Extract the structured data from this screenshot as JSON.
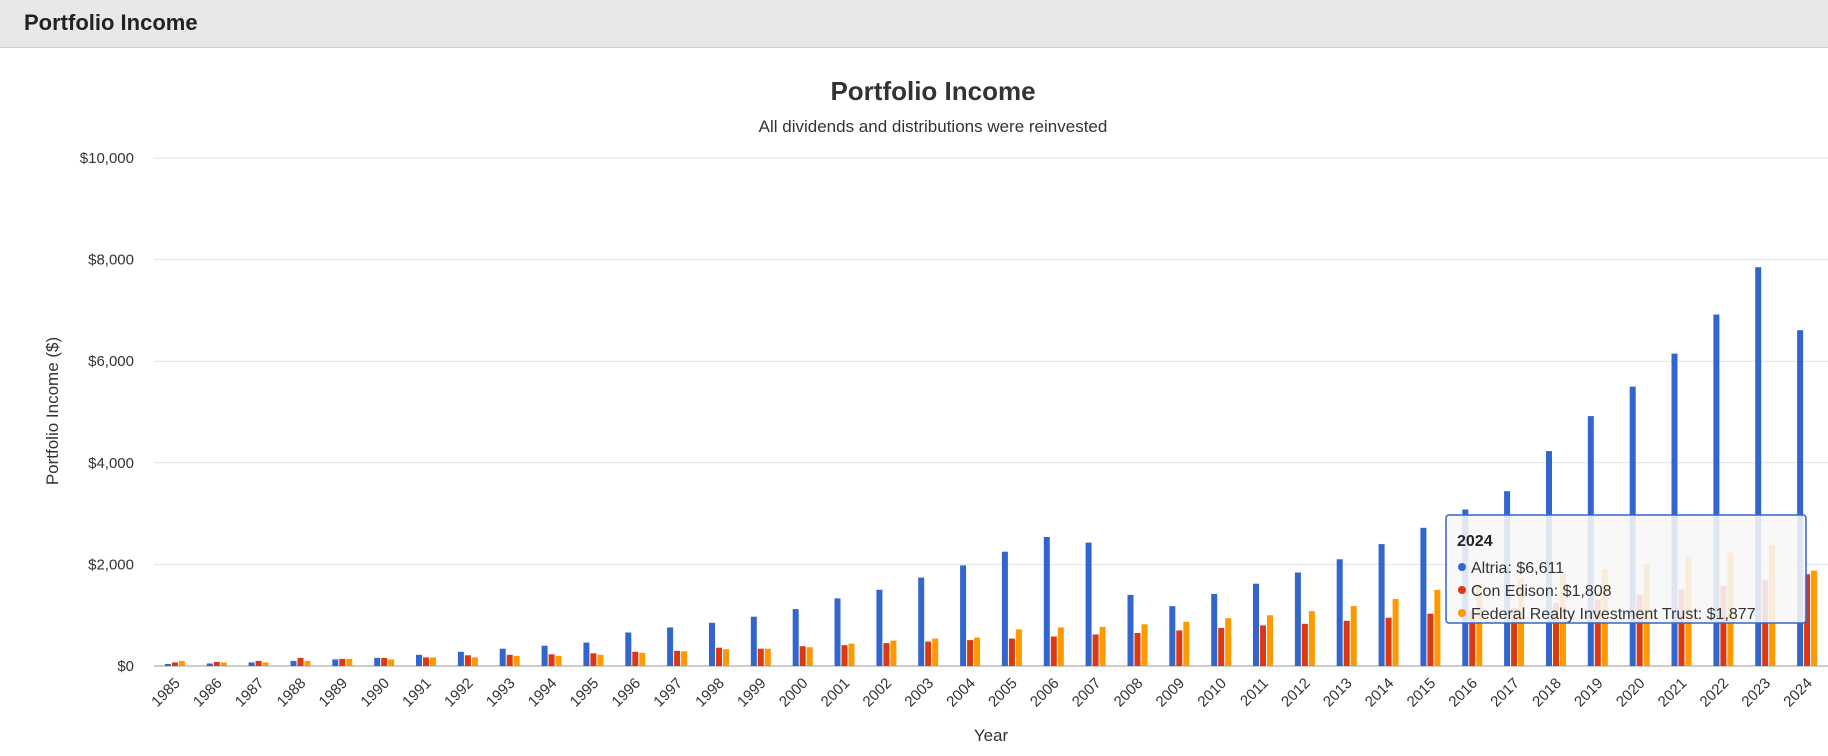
{
  "header": {
    "title": "Portfolio Income"
  },
  "chart_data": {
    "type": "bar",
    "title": "Portfolio Income",
    "subtitle": "All dividends and distributions were reinvested",
    "xlabel": "Year",
    "ylabel": "Portfolio Income ($)",
    "ylim": [
      0,
      10000
    ],
    "yticks": [
      0,
      2000,
      4000,
      6000,
      8000,
      10000
    ],
    "ytick_labels": [
      "$0",
      "$2,000",
      "$4,000",
      "$6,000",
      "$8,000",
      "$10,000"
    ],
    "grid": true,
    "legend": "none",
    "categories": [
      "1985",
      "1986",
      "1987",
      "1988",
      "1989",
      "1990",
      "1991",
      "1992",
      "1993",
      "1994",
      "1995",
      "1996",
      "1997",
      "1998",
      "1999",
      "2000",
      "2001",
      "2002",
      "2003",
      "2004",
      "2005",
      "2006",
      "2007",
      "2008",
      "2009",
      "2010",
      "2011",
      "2012",
      "2013",
      "2014",
      "2015",
      "2016",
      "2017",
      "2018",
      "2019",
      "2020",
      "2021",
      "2022",
      "2023",
      "2024"
    ],
    "series": [
      {
        "name": "Altria",
        "color": "#3366cc",
        "values": [
          40,
          50,
          70,
          100,
          130,
          160,
          220,
          280,
          340,
          400,
          460,
          660,
          760,
          850,
          970,
          1120,
          1330,
          1500,
          1740,
          1980,
          2250,
          2540,
          2430,
          1400,
          1180,
          1420,
          1620,
          1840,
          2100,
          2400,
          2720,
          3080,
          3440,
          4230,
          4920,
          5500,
          6150,
          6920,
          7850,
          6611
        ]
      },
      {
        "name": "Con Edison",
        "color": "#dc3912",
        "values": [
          70,
          80,
          100,
          160,
          140,
          160,
          170,
          210,
          220,
          230,
          250,
          280,
          300,
          360,
          340,
          390,
          410,
          450,
          480,
          510,
          540,
          580,
          620,
          650,
          700,
          750,
          800,
          830,
          890,
          950,
          1030,
          1080,
          1140,
          1240,
          1310,
          1400,
          1510,
          1580,
          1690,
          1808
        ]
      },
      {
        "name": "Federal Realty Investment Trust",
        "color": "#ff9900",
        "values": [
          100,
          70,
          70,
          100,
          140,
          130,
          170,
          170,
          200,
          200,
          220,
          260,
          290,
          330,
          340,
          370,
          440,
          500,
          540,
          560,
          720,
          760,
          770,
          820,
          870,
          940,
          1000,
          1080,
          1180,
          1320,
          1500,
          1610,
          1720,
          1820,
          1900,
          2000,
          2150,
          2230,
          2380,
          1877
        ]
      }
    ],
    "tooltip": {
      "title": "2024",
      "lines": [
        {
          "label": "Altria: $6,611",
          "color": "#3366cc"
        },
        {
          "label": "Con Edison: $1,808",
          "color": "#dc3912"
        },
        {
          "label": "Federal Realty Investment Trust: $1,877",
          "color": "#ff9900"
        }
      ]
    }
  }
}
